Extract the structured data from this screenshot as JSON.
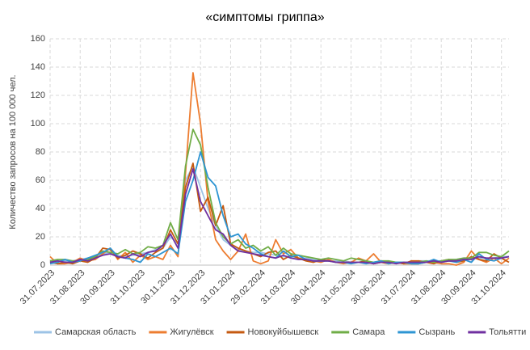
{
  "chart_data": {
    "type": "line",
    "title": "«симптомы гриппа»",
    "y_label": "Количество запросов на 100 000 чел.",
    "categories": [
      "31.07.2023",
      null,
      null,
      null,
      "31.08.2023",
      null,
      null,
      null,
      "30.09.2023",
      null,
      null,
      null,
      "31.10.2023",
      null,
      null,
      null,
      "30.11.2023",
      null,
      null,
      null,
      "31.12.2023",
      null,
      null,
      null,
      "31.01.2024",
      null,
      null,
      null,
      "29.02.2024",
      null,
      null,
      null,
      "31.03.2024",
      null,
      null,
      null,
      "30.04.2024",
      null,
      null,
      null,
      "31.05.2024",
      null,
      null,
      null,
      "30.06.2024",
      null,
      null,
      null,
      "31.07.2024",
      null,
      null,
      null,
      "31.08.2024",
      null,
      null,
      null,
      "30.09.2024",
      null,
      null,
      null,
      "31.10.2024",
      null
    ],
    "ylim": [
      0,
      160
    ],
    "yticks": [
      0,
      20,
      40,
      60,
      80,
      100,
      120,
      140,
      160
    ],
    "grid": true,
    "legend": "bottom",
    "series": [
      {
        "name": "Самарская область",
        "color": "#9dc3e6",
        "values": [
          3,
          3,
          3,
          3,
          4,
          5,
          6,
          8,
          9,
          7,
          6,
          7,
          8,
          9,
          11,
          12,
          20,
          15,
          60,
          70,
          55,
          40,
          28,
          18,
          14,
          11,
          10,
          9,
          9,
          8,
          7,
          6,
          6,
          5,
          5,
          4,
          4,
          3,
          3,
          3,
          2,
          2,
          2,
          2,
          2,
          2,
          2,
          2,
          2,
          3,
          3,
          3,
          3,
          3,
          4,
          5,
          5,
          5,
          5,
          5,
          6,
          6
        ]
      },
      {
        "name": "Жигулёвск",
        "color": "#ed7d31",
        "values": [
          6,
          1,
          1,
          2,
          5,
          3,
          4,
          8,
          12,
          4,
          9,
          2,
          7,
          4,
          6,
          4,
          14,
          6,
          65,
          136,
          100,
          45,
          18,
          10,
          4,
          10,
          22,
          3,
          1,
          3,
          18,
          8,
          11,
          5,
          4,
          3,
          2,
          4,
          2,
          1,
          2,
          5,
          3,
          8,
          2,
          2,
          2,
          1,
          1,
          1,
          2,
          2,
          1,
          1,
          0,
          2,
          10,
          4,
          2,
          5,
          1,
          5
        ]
      },
      {
        "name": "Новокуйбышевск",
        "color": "#c55a11",
        "values": [
          2,
          1,
          2,
          1,
          3,
          2,
          5,
          12,
          11,
          5,
          7,
          10,
          8,
          5,
          9,
          12,
          25,
          15,
          55,
          72,
          38,
          48,
          28,
          42,
          15,
          12,
          10,
          8,
          6,
          9,
          10,
          4,
          7,
          5,
          3,
          2,
          4,
          3,
          2,
          2,
          2,
          2,
          3,
          1,
          2,
          1,
          2,
          1,
          3,
          3,
          2,
          1,
          3,
          4,
          2,
          3,
          6,
          4,
          3,
          8,
          5,
          2
        ]
      },
      {
        "name": "Самара",
        "color": "#70ad47",
        "values": [
          3,
          4,
          4,
          3,
          3,
          4,
          6,
          10,
          9,
          8,
          11,
          8,
          9,
          13,
          12,
          14,
          30,
          18,
          70,
          96,
          85,
          55,
          30,
          20,
          15,
          18,
          12,
          14,
          10,
          13,
          7,
          12,
          8,
          7,
          6,
          5,
          4,
          5,
          4,
          3,
          5,
          4,
          3,
          2,
          3,
          3,
          2,
          2,
          1,
          2,
          3,
          2,
          3,
          4,
          4,
          5,
          5,
          9,
          9,
          7,
          6,
          10
        ]
      },
      {
        "name": "Сызрань",
        "color": "#2e95d3",
        "values": [
          1,
          2,
          4,
          2,
          3,
          5,
          7,
          9,
          12,
          6,
          5,
          4,
          2,
          8,
          6,
          9,
          12,
          8,
          45,
          60,
          80,
          62,
          56,
          35,
          20,
          22,
          15,
          12,
          8,
          6,
          5,
          10,
          6,
          7,
          4,
          3,
          3,
          3,
          2,
          2,
          1,
          2,
          1,
          2,
          3,
          1,
          2,
          2,
          1,
          1,
          2,
          4,
          2,
          3,
          2,
          4,
          2,
          8,
          4,
          3,
          5,
          6
        ]
      },
      {
        "name": "Тольятти",
        "color": "#7030a0",
        "values": [
          2,
          3,
          2,
          2,
          4,
          3,
          5,
          7,
          8,
          6,
          5,
          8,
          6,
          9,
          10,
          14,
          22,
          12,
          50,
          68,
          45,
          35,
          25,
          22,
          14,
          10,
          9,
          8,
          7,
          6,
          5,
          7,
          5,
          4,
          4,
          3,
          3,
          3,
          2,
          2,
          2,
          2,
          2,
          1,
          2,
          2,
          1,
          2,
          2,
          2,
          2,
          3,
          2,
          3,
          3,
          4,
          4,
          6,
          5,
          5,
          5,
          6
        ]
      }
    ]
  }
}
